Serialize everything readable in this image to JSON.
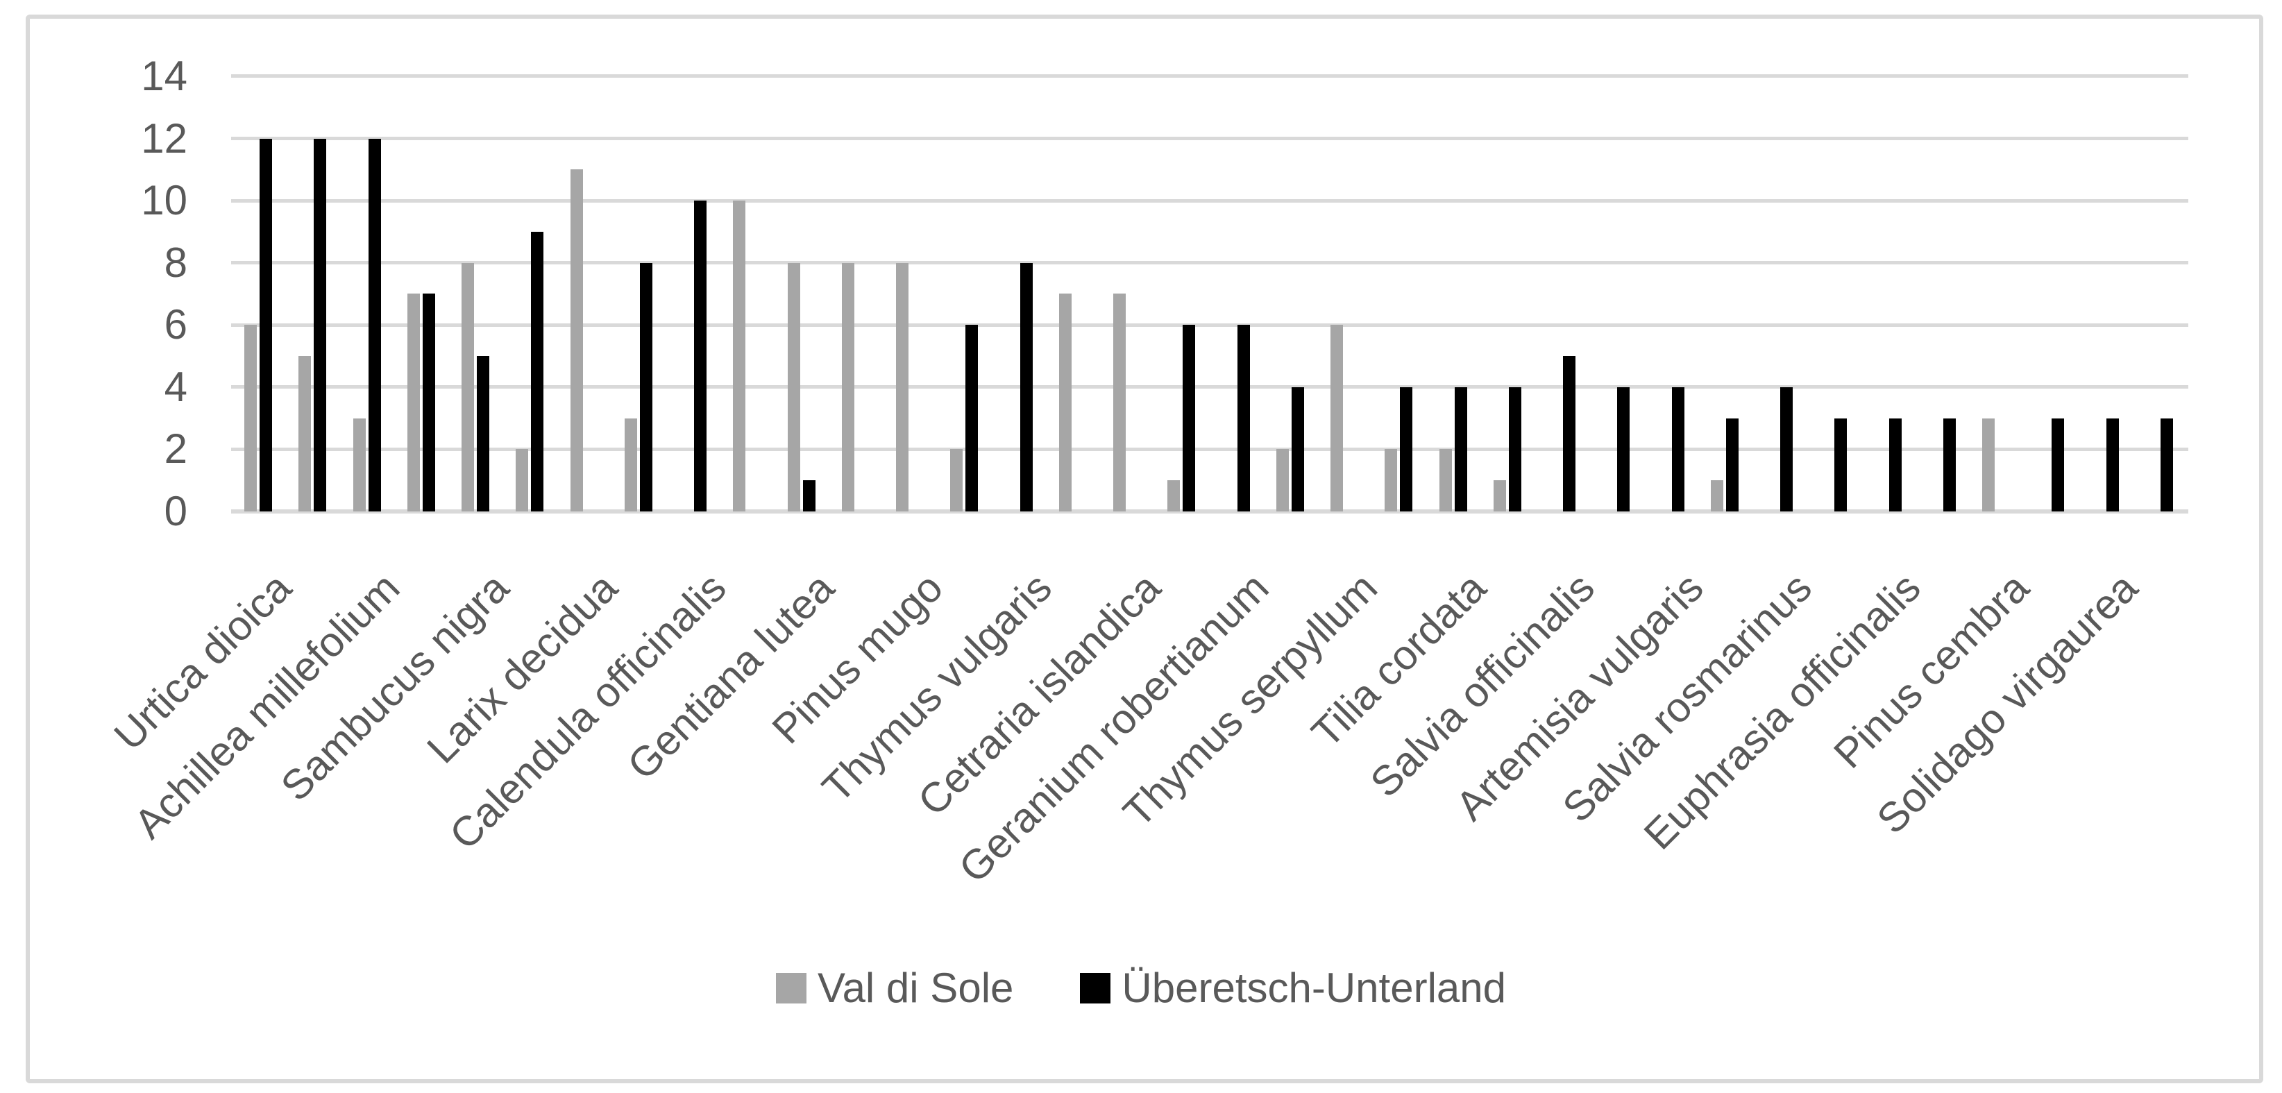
{
  "chart_data": {
    "type": "bar",
    "title": "",
    "xlabel": "",
    "ylabel": "",
    "ylim": [
      0,
      14
    ],
    "yticks": [
      0,
      2,
      4,
      6,
      8,
      10,
      12,
      14
    ],
    "grid": "horizontal",
    "legend_position": "bottom-center",
    "label_rotation_deg": 45,
    "series": [
      {
        "name": "Val di Sole",
        "color": "#A6A6A6"
      },
      {
        "name": "Überetsch-Unterland",
        "color": "#000000"
      }
    ],
    "points": [
      {
        "label": "Urtica dioica",
        "val_di_sole": 6,
        "uberetsch_unterland": 12
      },
      {
        "label": "",
        "val_di_sole": 5,
        "uberetsch_unterland": 12
      },
      {
        "label": "Achillea millefolium",
        "val_di_sole": 3,
        "uberetsch_unterland": 12
      },
      {
        "label": "",
        "val_di_sole": 7,
        "uberetsch_unterland": 7
      },
      {
        "label": "Sambucus nigra",
        "val_di_sole": 8,
        "uberetsch_unterland": 5
      },
      {
        "label": "",
        "val_di_sole": 2,
        "uberetsch_unterland": 9
      },
      {
        "label": "Larix decidua",
        "val_di_sole": 11,
        "uberetsch_unterland": 0
      },
      {
        "label": "",
        "val_di_sole": 3,
        "uberetsch_unterland": 8
      },
      {
        "label": "Calendula officinalis",
        "val_di_sole": 0,
        "uberetsch_unterland": 10
      },
      {
        "label": "",
        "val_di_sole": 10,
        "uberetsch_unterland": 0
      },
      {
        "label": "Gentiana lutea",
        "val_di_sole": 8,
        "uberetsch_unterland": 1
      },
      {
        "label": "",
        "val_di_sole": 8,
        "uberetsch_unterland": 0
      },
      {
        "label": "Pinus mugo",
        "val_di_sole": 8,
        "uberetsch_unterland": 0
      },
      {
        "label": "",
        "val_di_sole": 2,
        "uberetsch_unterland": 6
      },
      {
        "label": "Thymus vulgaris",
        "val_di_sole": 0,
        "uberetsch_unterland": 8
      },
      {
        "label": "",
        "val_di_sole": 7,
        "uberetsch_unterland": 0
      },
      {
        "label": "Cetraria islandica",
        "val_di_sole": 7,
        "uberetsch_unterland": 0
      },
      {
        "label": "",
        "val_di_sole": 1,
        "uberetsch_unterland": 6
      },
      {
        "label": "Geranium robertianum",
        "val_di_sole": 0,
        "uberetsch_unterland": 6
      },
      {
        "label": "",
        "val_di_sole": 2,
        "uberetsch_unterland": 4
      },
      {
        "label": "Thymus serpyllum",
        "val_di_sole": 6,
        "uberetsch_unterland": 0
      },
      {
        "label": "",
        "val_di_sole": 2,
        "uberetsch_unterland": 4
      },
      {
        "label": "Tilia cordata",
        "val_di_sole": 2,
        "uberetsch_unterland": 4
      },
      {
        "label": "",
        "val_di_sole": 1,
        "uberetsch_unterland": 4
      },
      {
        "label": "Salvia officinalis",
        "val_di_sole": 0,
        "uberetsch_unterland": 5
      },
      {
        "label": "",
        "val_di_sole": 0,
        "uberetsch_unterland": 4
      },
      {
        "label": "Artemisia vulgaris",
        "val_di_sole": 0,
        "uberetsch_unterland": 4
      },
      {
        "label": "",
        "val_di_sole": 1,
        "uberetsch_unterland": 3
      },
      {
        "label": "Salvia rosmarinus",
        "val_di_sole": 0,
        "uberetsch_unterland": 4
      },
      {
        "label": "",
        "val_di_sole": 0,
        "uberetsch_unterland": 3
      },
      {
        "label": "Euphrasia officinalis",
        "val_di_sole": 0,
        "uberetsch_unterland": 3
      },
      {
        "label": "",
        "val_di_sole": 0,
        "uberetsch_unterland": 3
      },
      {
        "label": "Pinus cembra",
        "val_di_sole": 3,
        "uberetsch_unterland": 0
      },
      {
        "label": "",
        "val_di_sole": 0,
        "uberetsch_unterland": 3
      },
      {
        "label": "Solidago virgaurea",
        "val_di_sole": 0,
        "uberetsch_unterland": 3
      },
      {
        "label": "",
        "val_di_sole": 0,
        "uberetsch_unterland": 3
      }
    ]
  },
  "colors": {
    "background": "#FFFFFF",
    "chart_border": "#D9D9D9",
    "gridline": "#D9D9D9",
    "axis_text": "#595959",
    "series_gray": "#A6A6A6",
    "series_black": "#000000"
  }
}
